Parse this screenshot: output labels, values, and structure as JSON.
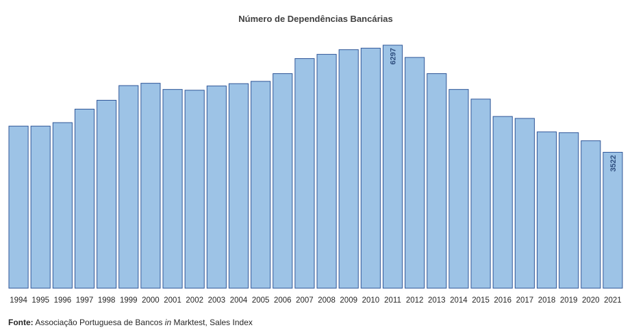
{
  "chart_data": {
    "type": "bar",
    "title": "Número de Dependências Bancárias",
    "categories": [
      "1994",
      "1995",
      "1996",
      "1997",
      "1998",
      "1999",
      "2000",
      "2001",
      "2002",
      "2003",
      "2004",
      "2005",
      "2006",
      "2007",
      "2008",
      "2009",
      "2010",
      "2011",
      "2012",
      "2013",
      "2014",
      "2015",
      "2016",
      "2017",
      "2018",
      "2019",
      "2020",
      "2021"
    ],
    "values": [
      4200,
      4200,
      4290,
      4640,
      4870,
      5250,
      5310,
      5150,
      5130,
      5240,
      5300,
      5360,
      5560,
      5950,
      6060,
      6180,
      6220,
      6297,
      5980,
      5560,
      5150,
      4900,
      4450,
      4400,
      4050,
      4030,
      3820,
      3522
    ],
    "data_labels": {
      "2011": "6297",
      "2021": "3522"
    },
    "ylim": [
      0,
      6297
    ],
    "bar_color": "#9dc3e6",
    "bar_border_color": "#2e5597",
    "grid": false,
    "legend": "none"
  },
  "source": {
    "label": "Fonte:",
    "text_before": "Associação Portuguesa de Bancos",
    "italic": "in",
    "text_after": "Marktest, Sales Index"
  }
}
